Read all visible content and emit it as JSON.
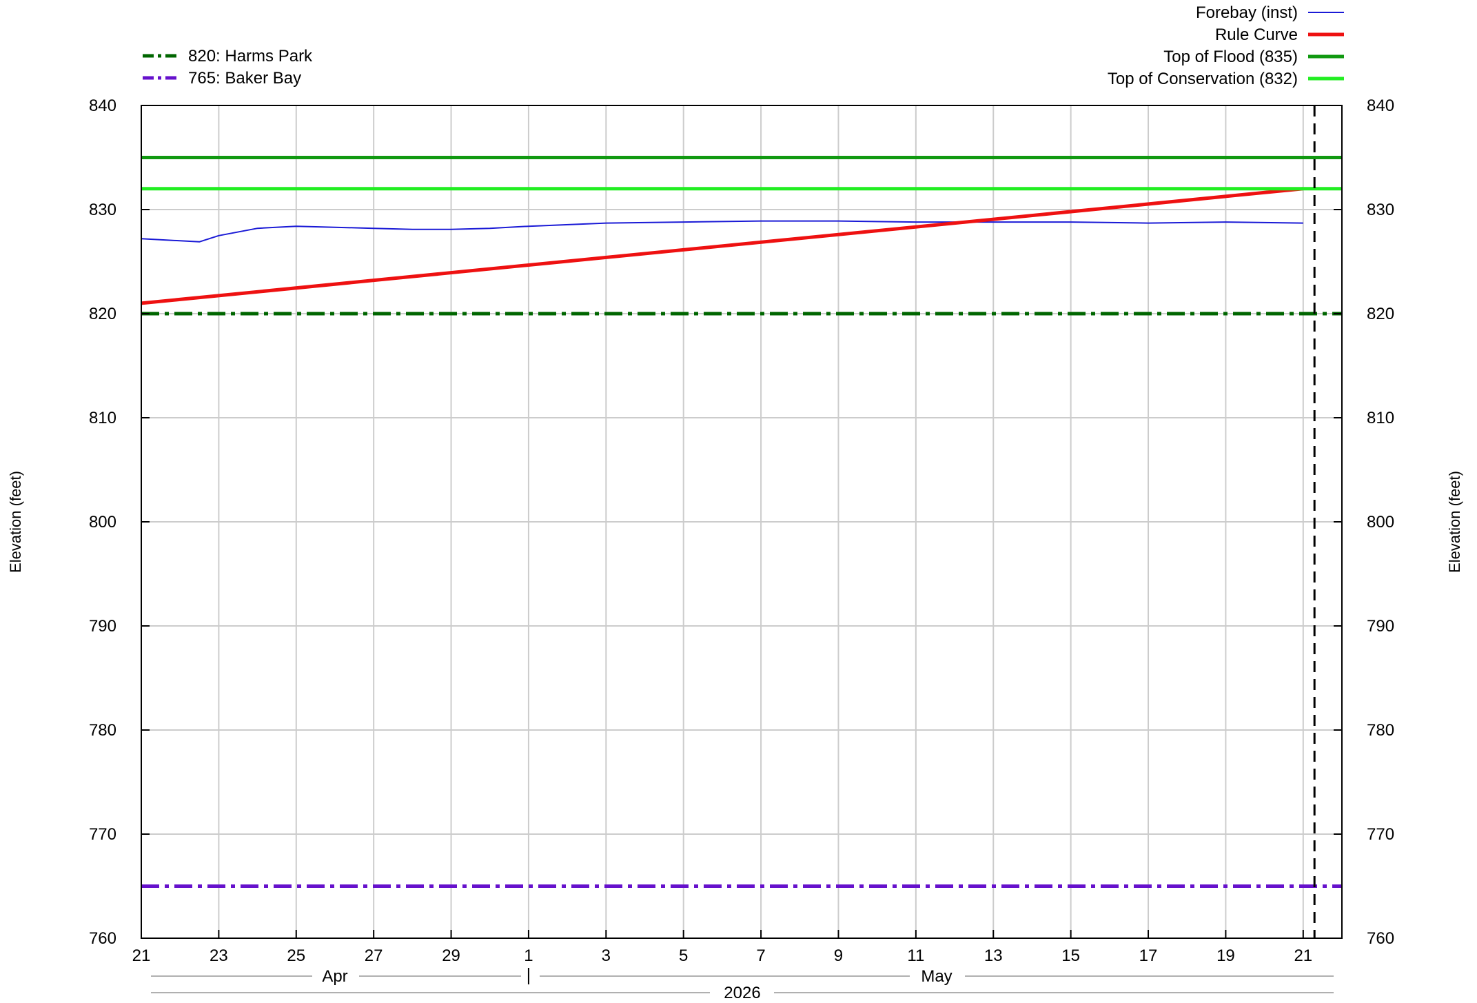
{
  "chart_data": {
    "type": "line",
    "title": "",
    "ylabel_left": "Elevation (feet)",
    "ylabel_right": "Elevation (feet)",
    "ylim": [
      760,
      840
    ],
    "yticks": [
      760,
      770,
      780,
      790,
      800,
      810,
      820,
      830,
      840
    ],
    "x_start": "2026-04-21",
    "x_end": "2026-05-22",
    "x_tick_labels": [
      "21",
      "23",
      "25",
      "27",
      "29",
      "1",
      "3",
      "5",
      "7",
      "9",
      "11",
      "13",
      "15",
      "17",
      "19",
      "21"
    ],
    "month_labels": [
      "Apr",
      "May"
    ],
    "year_label": "2026",
    "grid": true,
    "current_time_marker": "2026-05-21 07:00",
    "legend_right": [
      {
        "label": "Forebay (inst)",
        "color": "#1a1ad6"
      },
      {
        "label": "Rule Curve",
        "color": "#ee1111"
      },
      {
        "label": "Top of Flood (835)",
        "color": "#119911"
      },
      {
        "label": "Top of Conservation (832)",
        "color": "#22ee22"
      }
    ],
    "legend_left": [
      {
        "label": "820: Harms Park",
        "color": "#006600"
      },
      {
        "label": "765: Baker Bay",
        "color": "#6611cc"
      }
    ],
    "series": [
      {
        "name": "Forebay (inst)",
        "color": "#1a1ad6",
        "x": [
          "2026-04-21",
          "2026-04-22",
          "2026-04-22 12:00",
          "2026-04-23",
          "2026-04-24",
          "2026-04-25",
          "2026-04-26",
          "2026-04-27",
          "2026-04-28",
          "2026-04-29",
          "2026-04-30",
          "2026-05-01",
          "2026-05-03",
          "2026-05-05",
          "2026-05-07",
          "2026-05-09",
          "2026-05-11",
          "2026-05-13",
          "2026-05-15",
          "2026-05-17",
          "2026-05-19",
          "2026-05-21"
        ],
        "y": [
          827.2,
          827.0,
          826.9,
          827.5,
          828.2,
          828.4,
          828.3,
          828.2,
          828.1,
          828.1,
          828.2,
          828.4,
          828.7,
          828.8,
          828.9,
          828.9,
          828.8,
          828.8,
          828.8,
          828.7,
          828.8,
          828.7
        ]
      },
      {
        "name": "Rule Curve",
        "color": "#ee1111",
        "x": [
          "2026-04-21",
          "2026-05-21"
        ],
        "y": [
          821.0,
          832.0
        ]
      },
      {
        "name": "Top of Flood (835)",
        "color": "#119911",
        "x": [
          "2026-04-21",
          "2026-05-22"
        ],
        "y": [
          835,
          835
        ]
      },
      {
        "name": "Top of Conservation (832)",
        "color": "#22ee22",
        "x": [
          "2026-04-21",
          "2026-05-22"
        ],
        "y": [
          832,
          832
        ]
      },
      {
        "name": "820: Harms Park",
        "color": "#006600",
        "dashed": true,
        "x": [
          "2026-04-21",
          "2026-05-22"
        ],
        "y": [
          820,
          820
        ]
      },
      {
        "name": "765: Baker Bay",
        "color": "#6611cc",
        "dashed": true,
        "x": [
          "2026-04-21",
          "2026-05-22"
        ],
        "y": [
          765,
          765
        ]
      }
    ]
  }
}
